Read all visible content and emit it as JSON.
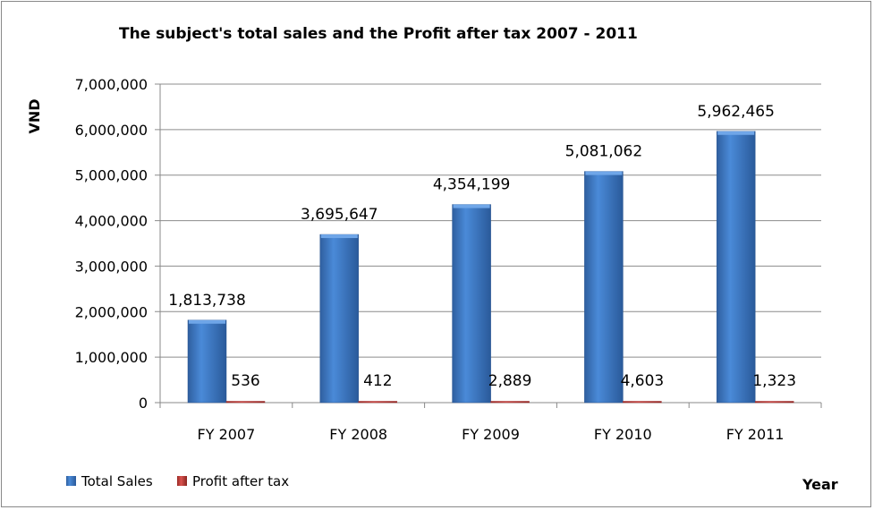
{
  "chart_data": {
    "type": "bar",
    "title": "The subject's total sales and the Profit after tax 2007 -  2011",
    "xlabel": "Year",
    "ylabel": "VND",
    "ylim": [
      0,
      7000000
    ],
    "yticks": [
      0,
      1000000,
      2000000,
      3000000,
      4000000,
      5000000,
      6000000,
      7000000
    ],
    "ytick_labels": [
      "0",
      "1,000,000",
      "2,000,000",
      "3,000,000",
      "4,000,000",
      "5,000,000",
      "6,000,000",
      "7,000,000"
    ],
    "grid": true,
    "legend_position": "bottom-left",
    "categories": [
      "FY 2007",
      "FY 2008",
      "FY 2009",
      "FY 2010",
      "FY 2011"
    ],
    "series": [
      {
        "name": "Total Sales",
        "color": "#3a78c8",
        "values": [
          1813738,
          3695647,
          4354199,
          5081062,
          5962465
        ],
        "labels": [
          "1,813,738",
          "3,695,647",
          "4,354,199",
          "5,081,062",
          "5,962,465"
        ]
      },
      {
        "name": "Profit after tax",
        "color": "#c0392b",
        "values": [
          536,
          412,
          2889,
          4603,
          1323
        ],
        "labels": [
          "536",
          "412",
          "2,889",
          "4,603",
          "1,323"
        ]
      }
    ]
  }
}
